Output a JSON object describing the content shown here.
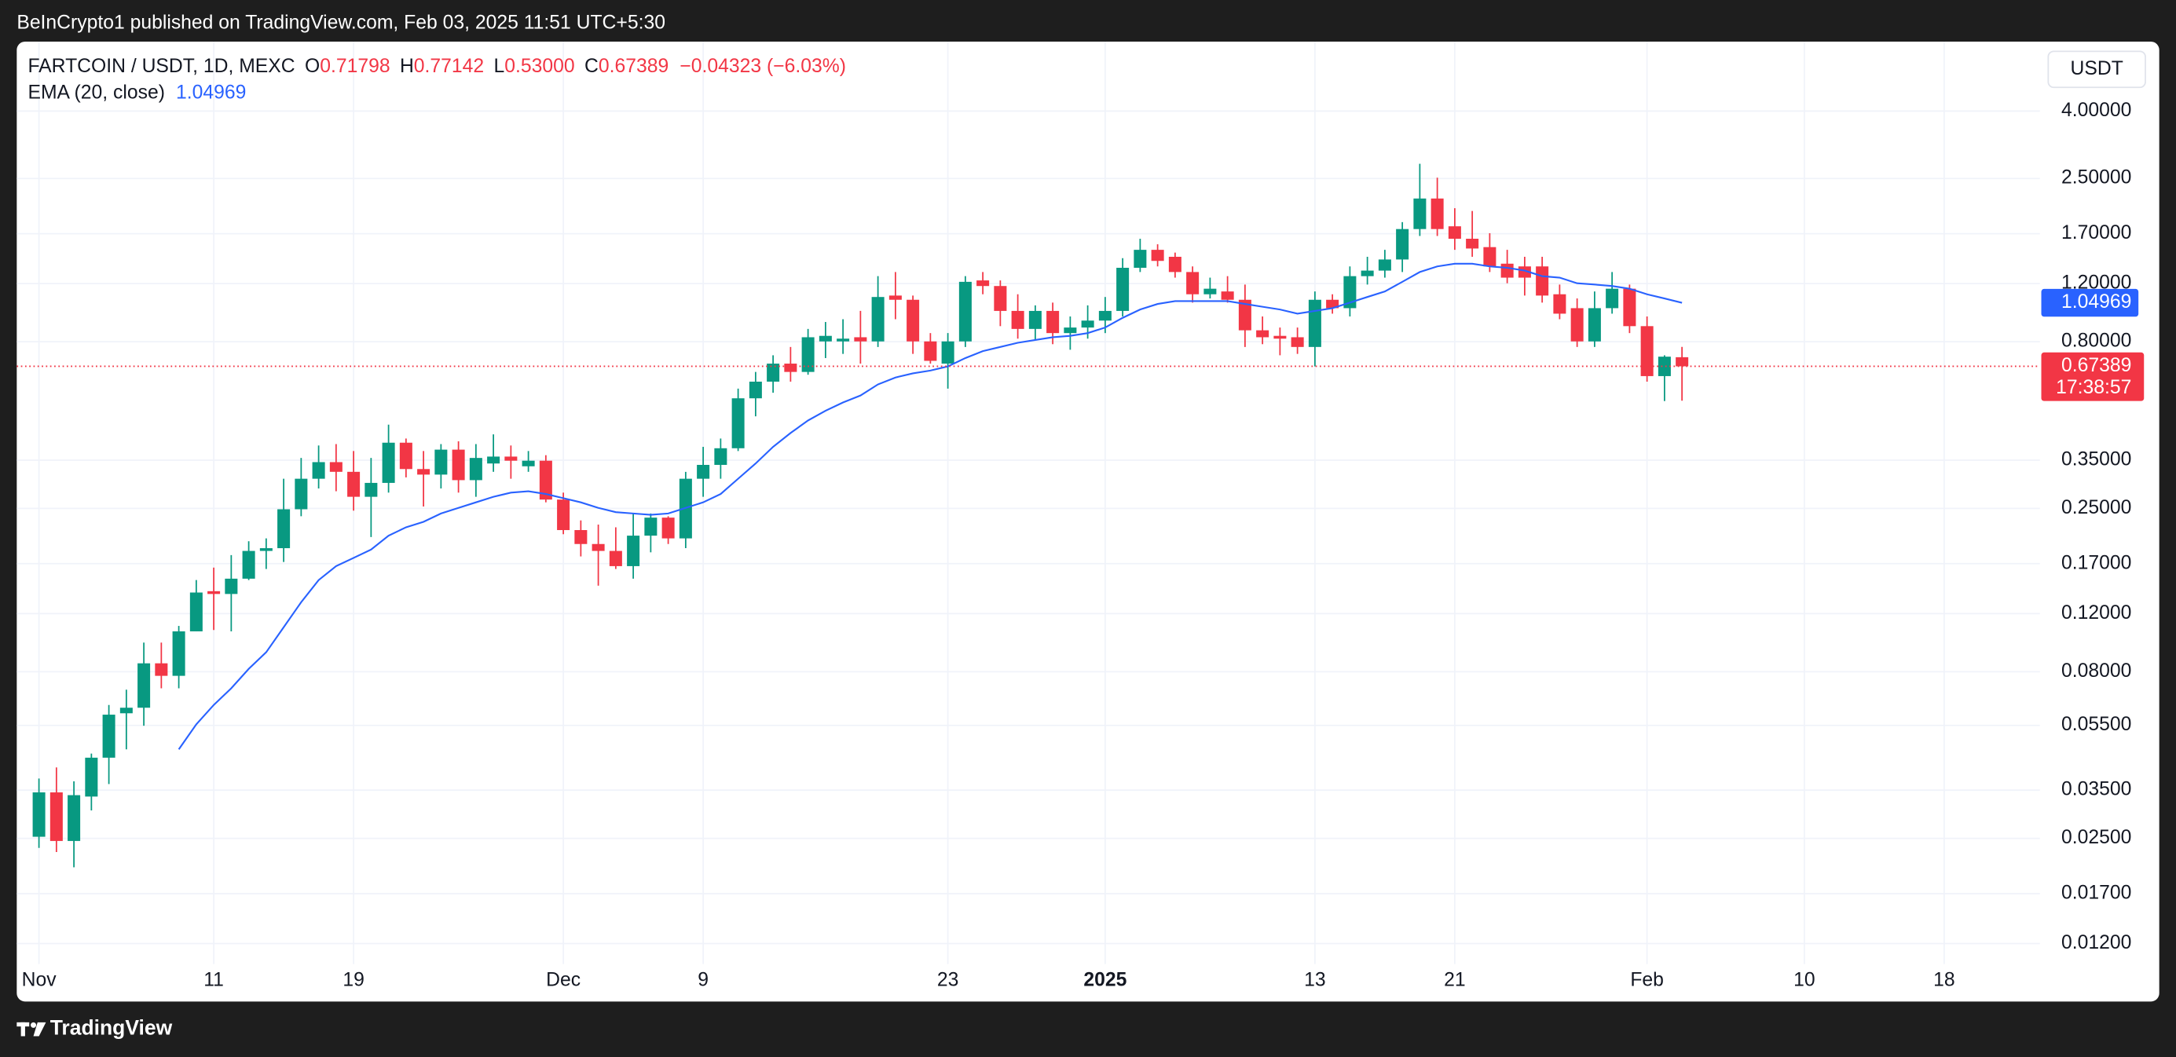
{
  "header": {
    "published": "BeInCrypto1 published on TradingView.com, Feb 03, 2025 11:51 UTC+5:30"
  },
  "footer": {
    "brand": "TradingView"
  },
  "chart_data": {
    "type": "candlestick",
    "legend": {
      "symbol": "FARTCOIN / USDT, 1D, MEXC",
      "fields": [
        {
          "key": "O",
          "value": "0.71798"
        },
        {
          "key": "H",
          "value": "0.77142"
        },
        {
          "key": "L",
          "value": "0.53000"
        },
        {
          "key": "C",
          "value": "0.67389"
        }
      ],
      "change": "−0.04323 (−6.03%)"
    },
    "currency": "USDT",
    "countdown": "17:38:57",
    "up_color": "#089981",
    "down_color": "#f23645",
    "log_scale": true,
    "grid": true,
    "ylim": [
      0.0104,
      6.37
    ],
    "yticks": [
      {
        "value": 4,
        "label": "4.00000"
      },
      {
        "value": 2.5,
        "label": "2.50000"
      },
      {
        "value": 1.7,
        "label": "1.70000"
      },
      {
        "value": 1.2,
        "label": "1.20000"
      },
      {
        "value": 0.8,
        "label": "0.80000"
      },
      {
        "value": 0.35,
        "label": "0.35000"
      },
      {
        "value": 0.25,
        "label": "0.25000"
      },
      {
        "value": 0.17,
        "label": "0.17000"
      },
      {
        "value": 0.12,
        "label": "0.12000"
      },
      {
        "value": 0.08,
        "label": "0.08000"
      },
      {
        "value": 0.055,
        "label": "0.05500"
      },
      {
        "value": 0.035,
        "label": "0.03500"
      },
      {
        "value": 0.025,
        "label": "0.02500"
      },
      {
        "value": 0.017,
        "label": "0.01700"
      },
      {
        "value": 0.012,
        "label": "0.01200"
      }
    ],
    "categories": [
      "Nov",
      null,
      null,
      null,
      null,
      null,
      null,
      null,
      null,
      null,
      "11",
      null,
      null,
      null,
      null,
      null,
      null,
      null,
      "19",
      null,
      null,
      null,
      null,
      null,
      null,
      null,
      null,
      null,
      null,
      null,
      "Dec",
      null,
      null,
      null,
      null,
      null,
      null,
      null,
      "9",
      null,
      null,
      null,
      null,
      null,
      null,
      null,
      null,
      null,
      null,
      null,
      null,
      null,
      "23",
      null,
      null,
      null,
      null,
      null,
      null,
      null,
      null,
      "2025",
      null,
      null,
      null,
      null,
      null,
      null,
      null,
      null,
      null,
      null,
      null,
      "13",
      null,
      null,
      null,
      null,
      null,
      null,
      null,
      "21",
      null,
      null,
      null,
      null,
      null,
      null,
      null,
      null,
      null,
      null,
      "Feb",
      null,
      null,
      null,
      null,
      null,
      null,
      null,
      null,
      "10",
      null,
      null,
      null,
      null,
      null,
      null,
      null,
      "18",
      null,
      null,
      null,
      null,
      null
    ],
    "open": [
      0.02528,
      0.03446,
      0.02455,
      0.03347,
      0.0439,
      0.05985,
      0.06221,
      0.08481,
      0.07772,
      0.106,
      0.1403,
      0.1376,
      0.1531,
      0.1858,
      0.1894,
      0.2485,
      0.3075,
      0.3453,
      0.3227,
      0.2711,
      0.2987,
      0.3954,
      0.329,
      0.3165,
      0.3767,
      0.3045,
      0.342,
      0.3589,
      0.3354,
      0.3487,
      0.2659,
      0.2149,
      0.195,
      0.1858,
      0.1671,
      0.2067,
      0.2344,
      0.2028,
      0.3075,
      0.3387,
      0.3804,
      0.539,
      0.6054,
      0.6866,
      0.6479,
      0.8017,
      0.8017,
      0.8253,
      0.8017,
      1.104,
      1.072,
      0.8017,
      0.6866,
      0.8017,
      1.227,
      1.18,
      0.9918,
      0.8747,
      0.9918,
      0.8496,
      0.8832,
      0.927,
      0.9918,
      1.34,
      1.519,
      1.447,
      1.301,
      1.114,
      1.136,
      1.072,
      0.8663,
      0.8333,
      0.8253,
      0.7712,
      1.072,
      1.011,
      1.264,
      1.314,
      1.42,
      1.756,
      2.173,
      1.79,
      1.641,
      1.548,
      1.379,
      1.353,
      1.353,
      1.114,
      1.011,
      0.8017,
      1.011,
      1.158,
      0.8918,
      0.6293,
      0.71798,
      null,
      null,
      null,
      null,
      null,
      null,
      null,
      null,
      null,
      null,
      null,
      null,
      null,
      null,
      null,
      null,
      null,
      null,
      null,
      null
    ],
    "high": [
      0.03796,
      0.04102,
      0.03723,
      0.04519,
      0.06342,
      0.07056,
      0.09801,
      0.09801,
      0.1101,
      0.1516,
      0.1654,
      0.1805,
      0.1988,
      0.2028,
      0.3075,
      0.3555,
      0.3878,
      0.3916,
      0.3731,
      0.3555,
      0.4485,
      0.4071,
      0.3731,
      0.3916,
      0.3993,
      0.3916,
      0.4191,
      0.3878,
      0.3731,
      0.3624,
      0.2791,
      0.2299,
      0.2233,
      0.2191,
      0.2413,
      0.2413,
      0.2367,
      0.3227,
      0.3841,
      0.4071,
      0.5768,
      0.6479,
      0.7277,
      0.7712,
      0.8747,
      0.918,
      0.936,
      0.9918,
      1.264,
      1.301,
      1.104,
      0.8496,
      0.8496,
      1.264,
      1.301,
      1.227,
      1.114,
      1.031,
      1.051,
      0.9542,
      1.031,
      1.093,
      1.433,
      1.641,
      1.579,
      1.49,
      1.353,
      1.251,
      1.264,
      1.192,
      0.9542,
      0.8832,
      0.8832,
      1.136,
      1.114,
      1.353,
      1.447,
      1.519,
      1.843,
      2.769,
      2.513,
      2.031,
      1.992,
      1.706,
      1.519,
      1.447,
      1.447,
      1.192,
      1.082,
      1.136,
      1.301,
      1.192,
      0.9542,
      0.7277,
      0.77142,
      null,
      null,
      null,
      null,
      null,
      null,
      null,
      null,
      null,
      null,
      null,
      null,
      null,
      null,
      null,
      null,
      null,
      null,
      null,
      null
    ],
    "low": [
      0.02339,
      0.02272,
      0.02043,
      0.03038,
      0.03652,
      0.04652,
      0.05486,
      0.07124,
      0.07124,
      0.106,
      0.107,
      0.106,
      0.1516,
      0.1638,
      0.172,
      0.2367,
      0.2873,
      0.2818,
      0.2461,
      0.2047,
      0.2791,
      0.3104,
      0.2533,
      0.2873,
      0.2791,
      0.2711,
      0.3227,
      0.3075,
      0.3227,
      0.2608,
      0.2088,
      0.1788,
      0.1458,
      0.1638,
      0.1531,
      0.184,
      0.195,
      0.1894,
      0.2711,
      0.3075,
      0.3731,
      0.4753,
      0.5603,
      0.6054,
      0.6354,
      0.7137,
      0.7348,
      0.6866,
      0.7712,
      0.936,
      0.7348,
      0.6866,
      0.5768,
      0.7712,
      1.114,
      0.8918,
      0.8173,
      0.8095,
      0.7863,
      0.7564,
      0.8173,
      0.8496,
      0.9542,
      1.301,
      1.353,
      1.251,
      1.051,
      1.082,
      1.051,
      0.7712,
      0.7863,
      0.7277,
      0.7348,
      0.6734,
      0.9729,
      0.9542,
      1.192,
      1.251,
      1.301,
      1.673,
      1.673,
      1.519,
      1.447,
      1.301,
      1.203,
      1.104,
      1.051,
      0.936,
      0.7712,
      0.7712,
      0.9729,
      0.8496,
      0.6054,
      0.5287,
      0.53,
      null,
      null,
      null,
      null,
      null,
      null,
      null,
      null,
      null,
      null,
      null,
      null,
      null,
      null,
      null,
      null,
      null,
      null,
      null,
      null
    ],
    "close": [
      0.03446,
      0.02455,
      0.0338,
      0.0439,
      0.05927,
      0.06221,
      0.08481,
      0.07772,
      0.106,
      0.139,
      0.1376,
      0.1531,
      0.1858,
      0.1894,
      0.2485,
      0.3075,
      0.3453,
      0.3227,
      0.2711,
      0.2987,
      0.3954,
      0.329,
      0.3165,
      0.3767,
      0.3045,
      0.3555,
      0.3589,
      0.3487,
      0.3487,
      0.2659,
      0.2149,
      0.195,
      0.1858,
      0.1671,
      0.2067,
      0.2344,
      0.2028,
      0.3075,
      0.3387,
      0.3804,
      0.539,
      0.6054,
      0.6866,
      0.6479,
      0.8253,
      0.8333,
      0.8173,
      0.8017,
      1.093,
      1.072,
      0.8017,
      0.7,
      0.8017,
      1.215,
      1.18,
      0.9918,
      0.8747,
      0.9918,
      0.8496,
      0.8832,
      0.927,
      0.9918,
      1.34,
      1.519,
      1.406,
      1.301,
      1.114,
      1.158,
      1.072,
      0.8663,
      0.8253,
      0.8173,
      0.7712,
      1.072,
      1.011,
      1.264,
      1.314,
      1.42,
      1.756,
      2.173,
      1.756,
      1.641,
      1.533,
      1.353,
      1.251,
      1.251,
      1.104,
      0.9729,
      0.8017,
      1.011,
      1.158,
      0.8918,
      0.6293,
      0.7207,
      0.67389,
      null,
      null,
      null,
      null,
      null,
      null,
      null,
      null,
      null,
      null,
      null,
      null,
      null,
      null,
      null,
      null,
      null,
      null,
      null,
      null
    ],
    "series": [
      {
        "name": "EMA (20, close)",
        "color": "#2962ff",
        "values": [
          null,
          null,
          null,
          null,
          null,
          null,
          null,
          null,
          0.04652,
          0.05539,
          0.06342,
          0.07124,
          0.08157,
          0.09163,
          0.1091,
          0.1299,
          0.1516,
          0.1671,
          0.177,
          0.1876,
          0.2067,
          0.2191,
          0.2277,
          0.2413,
          0.2509,
          0.2608,
          0.2711,
          0.2791,
          0.2818,
          0.2764,
          0.2685,
          0.2608,
          0.2509,
          0.2436,
          0.2413,
          0.239,
          0.2413,
          0.2509,
          0.2608,
          0.2764,
          0.3075,
          0.342,
          0.3841,
          0.4231,
          0.4617,
          0.4941,
          0.5236,
          0.5496,
          0.5938,
          0.6232,
          0.6416,
          0.6542,
          0.6734,
          0.7137,
          0.7491,
          0.7712,
          0.794,
          0.8095,
          0.8253,
          0.8333,
          0.8496,
          0.8832,
          0.945,
          1.0015,
          1.041,
          1.062,
          1.062,
          1.062,
          1.062,
          1.041,
          1.021,
          1.0015,
          0.9729,
          0.9918,
          1.011,
          1.051,
          1.093,
          1.136,
          1.215,
          1.301,
          1.353,
          1.379,
          1.379,
          1.353,
          1.34,
          1.314,
          1.264,
          1.251,
          1.203,
          1.192,
          1.18,
          1.158,
          1.114,
          1.082,
          1.04969,
          null,
          null,
          null,
          null,
          null,
          null,
          null,
          null,
          null,
          null,
          null,
          null,
          null,
          null,
          null,
          null,
          null,
          null,
          null,
          null
        ]
      }
    ]
  }
}
